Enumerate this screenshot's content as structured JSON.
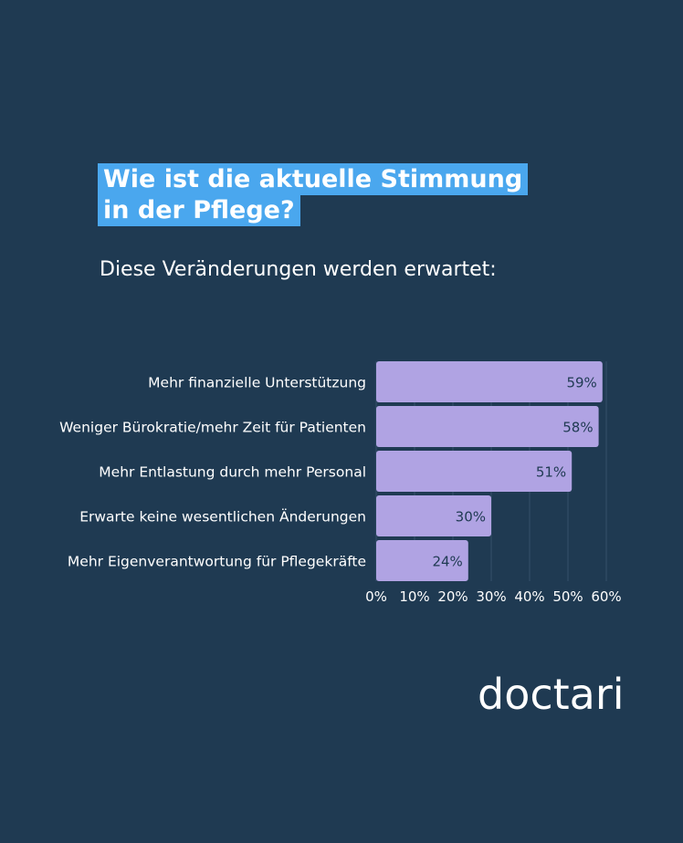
{
  "header": {
    "title": "Wie ist die aktuelle Stimmung in der Pflege?",
    "subtitle": "Diese Veränderungen werden erwartet:"
  },
  "brand": {
    "logo_text": "doctari"
  },
  "colors": {
    "background": "#1f3a52",
    "title_highlight": "#4aa7ee",
    "bar": "#b0a3e3",
    "bar_label": "#1f3a52",
    "text": "#ffffff",
    "grid": "#34506a"
  },
  "chart_data": {
    "type": "bar",
    "orientation": "horizontal",
    "categories": [
      "Mehr finanzielle Unterstützung",
      "Weniger Bürokratie/mehr Zeit für Patienten",
      "Mehr Entlastung durch mehr Personal",
      "Erwarte keine wesentlichen Änderungen",
      "Mehr Eigenverantwortung für Pflegekräfte"
    ],
    "values": [
      59,
      58,
      51,
      30,
      24
    ],
    "value_labels": [
      "59%",
      "58%",
      "51%",
      "30%",
      "24%"
    ],
    "xlim": [
      0,
      60
    ],
    "ticks": [
      0,
      10,
      20,
      30,
      40,
      50,
      60
    ],
    "tick_labels": [
      "0%",
      "10%",
      "20%",
      "30%",
      "40%",
      "50%",
      "60%"
    ],
    "grid": true,
    "legend": false
  }
}
